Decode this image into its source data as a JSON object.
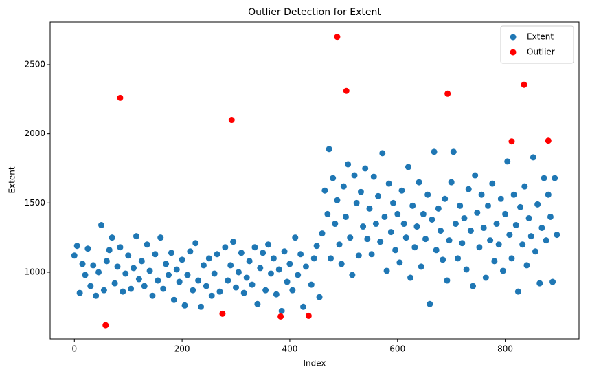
{
  "chart_data": {
    "type": "scatter",
    "title": "Outlier Detection for Extent",
    "x_label": "Index",
    "y_label": "Extent",
    "xlim": [
      -45,
      937
    ],
    "ylim": [
      518,
      2808
    ],
    "xticks": [
      0,
      200,
      400,
      600,
      800
    ],
    "yticks": [
      1000,
      1500,
      2000,
      2500
    ],
    "grid": false,
    "legend": "upper right",
    "series": [
      {
        "name": "Extent",
        "color": "#1f77b4",
        "x": [
          0,
          5,
          10,
          15,
          20,
          25,
          30,
          35,
          40,
          45,
          50,
          55,
          60,
          65,
          70,
          75,
          80,
          85,
          90,
          95,
          100,
          105,
          110,
          115,
          120,
          125,
          130,
          135,
          140,
          145,
          150,
          155,
          160,
          165,
          170,
          175,
          180,
          185,
          190,
          195,
          200,
          205,
          210,
          215,
          220,
          225,
          230,
          235,
          240,
          245,
          250,
          255,
          260,
          265,
          270,
          280,
          285,
          290,
          295,
          300,
          305,
          310,
          315,
          320,
          325,
          330,
          335,
          340,
          345,
          350,
          355,
          360,
          365,
          370,
          375,
          380,
          385,
          390,
          395,
          400,
          405,
          410,
          415,
          420,
          425,
          430,
          440,
          445,
          450,
          455,
          460,
          465,
          470,
          473,
          476,
          480,
          484,
          488,
          492,
          496,
          500,
          504,
          508,
          512,
          516,
          520,
          524,
          528,
          532,
          536,
          540,
          544,
          548,
          552,
          556,
          560,
          564,
          568,
          572,
          576,
          580,
          584,
          588,
          592,
          596,
          600,
          604,
          608,
          612,
          616,
          620,
          624,
          628,
          632,
          636,
          640,
          644,
          648,
          652,
          656,
          660,
          664,
          668,
          672,
          676,
          680,
          684,
          688,
          692,
          696,
          700,
          704,
          708,
          712,
          716,
          720,
          724,
          728,
          732,
          736,
          740,
          744,
          748,
          752,
          756,
          760,
          764,
          768,
          772,
          776,
          780,
          784,
          788,
          792,
          796,
          800,
          804,
          808,
          812,
          816,
          820,
          824,
          828,
          832,
          836,
          840,
          844,
          848,
          852,
          856,
          860,
          864,
          868,
          872,
          876,
          880,
          884,
          888,
          892,
          896
        ],
        "values": [
          1120,
          1190,
          850,
          1060,
          980,
          1170,
          900,
          1050,
          830,
          1000,
          1340,
          870,
          1080,
          1160,
          1250,
          920,
          1040,
          1180,
          860,
          990,
          1120,
          880,
          1030,
          1260,
          950,
          1080,
          900,
          1200,
          1010,
          830,
          1130,
          940,
          1250,
          880,
          1060,
          980,
          1140,
          800,
          1020,
          930,
          1090,
          760,
          980,
          1150,
          870,
          1210,
          940,
          750,
          1050,
          900,
          1100,
          830,
          990,
          1130,
          860,
          1180,
          940,
          1050,
          1220,
          890,
          1000,
          1140,
          850,
          960,
          1080,
          910,
          1180,
          770,
          1030,
          1140,
          870,
          1200,
          990,
          1100,
          840,
          1020,
          720,
          1150,
          930,
          1060,
          870,
          1250,
          980,
          1130,
          750,
          1040,
          910,
          1100,
          1190,
          820,
          1280,
          1590,
          1420,
          1890,
          1100,
          1680,
          1350,
          1520,
          1200,
          1060,
          1620,
          1400,
          1780,
          1250,
          980,
          1700,
          1500,
          1120,
          1580,
          1330,
          1750,
          1240,
          1460,
          1130,
          1690,
          1350,
          1550,
          1220,
          1860,
          1400,
          1010,
          1640,
          1290,
          1500,
          1160,
          1420,
          1070,
          1590,
          1350,
          1250,
          1760,
          960,
          1480,
          1180,
          1330,
          1650,
          1040,
          1420,
          1240,
          1560,
          770,
          1380,
          1870,
          1160,
          1460,
          1300,
          1090,
          1530,
          940,
          1230,
          1650,
          1870,
          1350,
          1100,
          1480,
          1210,
          1390,
          1020,
          1600,
          1300,
          900,
          1700,
          1430,
          1180,
          1560,
          1320,
          960,
          1480,
          1230,
          1640,
          1080,
          1350,
          1200,
          1530,
          1010,
          1420,
          1800,
          1270,
          1100,
          1560,
          1340,
          860,
          1470,
          1200,
          1620,
          1050,
          1390,
          1260,
          1830,
          1150,
          1490,
          920,
          1320,
          1680,
          1230,
          1560,
          1400,
          930,
          1680,
          1270
        ]
      },
      {
        "name": "Outlier",
        "color": "#ff0000",
        "x": [
          58,
          85,
          275,
          292,
          383,
          435,
          488,
          505,
          693,
          812,
          835,
          880
        ],
        "values": [
          617,
          2260,
          700,
          2100,
          680,
          685,
          2700,
          2310,
          2290,
          1945,
          2355,
          1950
        ]
      }
    ]
  }
}
